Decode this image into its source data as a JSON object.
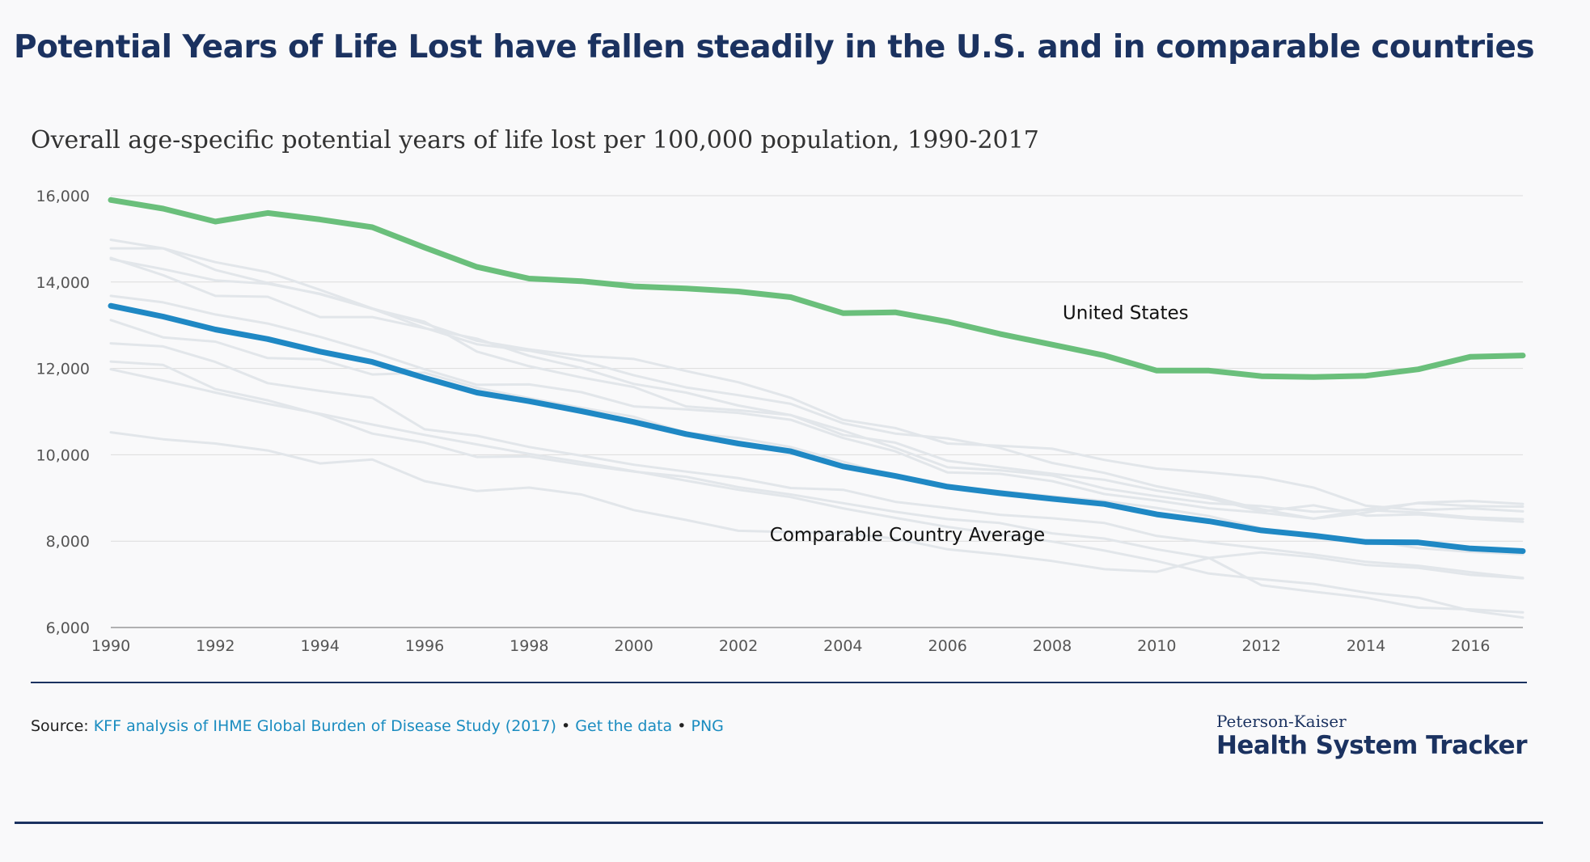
{
  "header": {
    "title": "Potential Years of Life Lost have fallen steadily in the U.S. and in comparable countries"
  },
  "chart_data": {
    "type": "line",
    "title": "Overall age-specific potential years of life lost per 100,000 population, 1990-2017",
    "xlabel": "",
    "ylabel": "",
    "xlim": [
      1990,
      2017
    ],
    "ylim": [
      6000,
      16000
    ],
    "y_ticks": [
      16000,
      14000,
      12000,
      10000,
      8000,
      6000
    ],
    "y_tick_labels": [
      "16,000",
      "14,000",
      "12,000",
      "10,000",
      "8,000",
      "6,000"
    ],
    "x_ticks": [
      1990,
      1992,
      1994,
      1996,
      1998,
      2000,
      2002,
      2004,
      2006,
      2008,
      2010,
      2012,
      2014,
      2016
    ],
    "x_tick_labels": [
      "1990",
      "1992",
      "1994",
      "1996",
      "1998",
      "2000",
      "2002",
      "2004",
      "2006",
      "2008",
      "2010",
      "2012",
      "2014",
      "2016"
    ],
    "grid": true,
    "x": [
      1990,
      1991,
      1992,
      1993,
      1994,
      1995,
      1996,
      1997,
      1998,
      1999,
      2000,
      2001,
      2002,
      2003,
      2004,
      2005,
      2006,
      2007,
      2008,
      2009,
      2010,
      2011,
      2012,
      2013,
      2014,
      2015,
      2016,
      2017
    ],
    "series": [
      {
        "name": "United States",
        "color": "#6abf7b",
        "highlight": true,
        "values": [
          15900,
          15700,
          15400,
          15600,
          15450,
          15270,
          14800,
          14350,
          14080,
          14020,
          13900,
          13850,
          13780,
          13650,
          13280,
          13300,
          13080,
          12800,
          12550,
          12300,
          11950,
          11950,
          11820,
          11800,
          11830,
          11980,
          12270,
          12300
        ]
      },
      {
        "name": "Comparable Country Average",
        "color": "#1f88c4",
        "highlight": true,
        "values": [
          13450,
          13200,
          12900,
          12680,
          12390,
          12150,
          11780,
          11440,
          11240,
          11010,
          10760,
          10480,
          10260,
          10080,
          9730,
          9510,
          9260,
          9110,
          8980,
          8860,
          8620,
          8460,
          8250,
          8130,
          7980,
          7970,
          7830,
          7770
        ]
      },
      {
        "values": [
          14980,
          14780,
          14460,
          14230,
          13820,
          13390,
          13040,
          12640,
          12440,
          12290,
          12220,
          11940,
          11680,
          11320,
          10810,
          10620,
          10260,
          10210,
          10140,
          9880,
          9680,
          9590,
          9480,
          9240,
          8820,
          8720,
          8760,
          8690
        ],
        "color": "#e2e6ea"
      },
      {
        "values": [
          14780,
          14780,
          14280,
          13980,
          13720,
          13380,
          12940,
          12560,
          12410,
          12180,
          11840,
          11560,
          11380,
          11180,
          10730,
          10490,
          10380,
          10160,
          9810,
          9580,
          9270,
          9040,
          8740,
          8520,
          8660,
          8890,
          8930,
          8860
        ],
        "color": "#e2e6ea"
      },
      {
        "values": [
          14560,
          14160,
          13680,
          13660,
          13190,
          13190,
          12930,
          12690,
          12290,
          12010,
          11640,
          11440,
          11140,
          10920,
          10460,
          10280,
          9860,
          9710,
          9560,
          9420,
          9170,
          8990,
          8690,
          8830,
          8590,
          8620,
          8520,
          8450
        ],
        "color": "#e2e6ea"
      },
      {
        "values": [
          14530,
          14300,
          14040,
          13960,
          13730,
          13380,
          13080,
          12390,
          12050,
          11790,
          11570,
          11120,
          11030,
          10920,
          10560,
          10160,
          9710,
          9640,
          9520,
          9220,
          9040,
          8880,
          8810,
          8680,
          8720,
          8660,
          8550,
          8510
        ],
        "color": "#e2e6ea"
      },
      {
        "values": [
          13680,
          13530,
          13250,
          13040,
          12730,
          12380,
          11980,
          11620,
          11630,
          11450,
          11120,
          11050,
          10970,
          10810,
          10390,
          10080,
          9590,
          9560,
          9390,
          9090,
          8940,
          8760,
          8660,
          8520,
          8740,
          8880,
          8810,
          8800
        ],
        "color": "#e2e6ea"
      },
      {
        "values": [
          13120,
          12720,
          12620,
          12240,
          12210,
          11860,
          11900,
          11550,
          11310,
          11090,
          10880,
          10510,
          10390,
          10180,
          9840,
          9510,
          9270,
          9160,
          9040,
          8930,
          8770,
          8580,
          8300,
          8060,
          8020,
          7840,
          7750,
          7700
        ],
        "color": "#e2e6ea"
      },
      {
        "values": [
          12580,
          12510,
          12150,
          11660,
          11480,
          11320,
          10590,
          10440,
          10180,
          9980,
          9770,
          9610,
          9460,
          9230,
          9190,
          8910,
          8770,
          8610,
          8530,
          8420,
          8120,
          7970,
          7830,
          7690,
          7520,
          7430,
          7280,
          7150
        ],
        "color": "#e2e6ea"
      },
      {
        "values": [
          12160,
          12080,
          11520,
          11260,
          10930,
          10490,
          10280,
          9950,
          9960,
          9770,
          9610,
          9490,
          9250,
          9080,
          8880,
          8680,
          8510,
          8420,
          8180,
          8060,
          7810,
          7610,
          7740,
          7630,
          7450,
          7380,
          7220,
          7140
        ],
        "color": "#e2e6ea"
      },
      {
        "values": [
          10520,
          10360,
          10260,
          10100,
          9800,
          9890,
          9390,
          9160,
          9240,
          9080,
          8720,
          8490,
          8240,
          8210,
          8180,
          8060,
          7810,
          7690,
          7540,
          7350,
          7290,
          7610,
          6980,
          6830,
          6690,
          6460,
          6420,
          6350
        ],
        "color": "#e2e6ea"
      },
      {
        "values": [
          11980,
          11720,
          11440,
          11180,
          10950,
          10700,
          10460,
          10240,
          10020,
          9830,
          9620,
          9400,
          9190,
          9020,
          8760,
          8540,
          8330,
          8160,
          7990,
          7780,
          7540,
          7250,
          7120,
          7010,
          6810,
          6690,
          6390,
          6230
        ],
        "color": "#e2e6ea"
      }
    ],
    "annotations": [
      {
        "text": "United States",
        "x": 2008.2,
        "y": 13140
      },
      {
        "text": "Comparable Country Average",
        "x": 2002.6,
        "y": 8000
      }
    ]
  },
  "footer": {
    "source_label": "Source:",
    "source_link": "KFF analysis of IHME Global Burden of Disease Study (2017)",
    "separator": "•",
    "get_data": "Get the data",
    "png": "PNG",
    "logo_top": "Peterson-Kaiser",
    "logo_main": "Health System Tracker"
  }
}
